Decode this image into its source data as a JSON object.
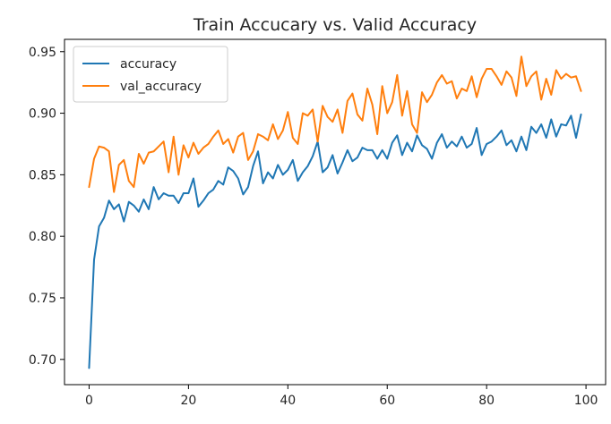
{
  "chart_data": {
    "type": "line",
    "title": "Train Accucary vs. Valid Accuracy",
    "xlabel": "",
    "ylabel": "",
    "xlim": [
      -4.95,
      103.95
    ],
    "ylim": [
      0.6795,
      0.96
    ],
    "xticks": [
      0,
      20,
      40,
      60,
      80,
      100
    ],
    "xtick_labels": [
      "0",
      "20",
      "40",
      "60",
      "80",
      "100"
    ],
    "yticks": [
      0.7,
      0.75,
      0.8,
      0.85,
      0.9,
      0.95
    ],
    "ytick_labels": [
      "0.70",
      "0.75",
      "0.80",
      "0.85",
      "0.90",
      "0.95"
    ],
    "grid": false,
    "legend_position": "upper left",
    "x": [
      0,
      1,
      2,
      3,
      4,
      5,
      6,
      7,
      8,
      9,
      10,
      11,
      12,
      13,
      14,
      15,
      16,
      17,
      18,
      19,
      20,
      21,
      22,
      23,
      24,
      25,
      26,
      27,
      28,
      29,
      30,
      31,
      32,
      33,
      34,
      35,
      36,
      37,
      38,
      39,
      40,
      41,
      42,
      43,
      44,
      45,
      46,
      47,
      48,
      49,
      50,
      51,
      52,
      53,
      54,
      55,
      56,
      57,
      58,
      59,
      60,
      61,
      62,
      63,
      64,
      65,
      66,
      67,
      68,
      69,
      70,
      71,
      72,
      73,
      74,
      75,
      76,
      77,
      78,
      79,
      80,
      81,
      82,
      83,
      84,
      85,
      86,
      87,
      88,
      89,
      90,
      91,
      92,
      93,
      94,
      95,
      96,
      97,
      98,
      99
    ],
    "series": [
      {
        "name": "accuracy",
        "color": "#1f77b4",
        "values": [
          0.693,
          0.781,
          0.808,
          0.815,
          0.829,
          0.822,
          0.826,
          0.812,
          0.828,
          0.825,
          0.82,
          0.83,
          0.822,
          0.84,
          0.83,
          0.835,
          0.833,
          0.833,
          0.827,
          0.835,
          0.835,
          0.847,
          0.824,
          0.829,
          0.835,
          0.838,
          0.845,
          0.842,
          0.856,
          0.853,
          0.847,
          0.834,
          0.84,
          0.857,
          0.869,
          0.843,
          0.852,
          0.847,
          0.858,
          0.85,
          0.854,
          0.862,
          0.845,
          0.852,
          0.857,
          0.865,
          0.877,
          0.852,
          0.856,
          0.866,
          0.851,
          0.86,
          0.87,
          0.861,
          0.864,
          0.872,
          0.87,
          0.87,
          0.863,
          0.87,
          0.863,
          0.876,
          0.882,
          0.866,
          0.876,
          0.869,
          0.882,
          0.874,
          0.871,
          0.863,
          0.876,
          0.883,
          0.872,
          0.877,
          0.873,
          0.881,
          0.872,
          0.875,
          0.888,
          0.866,
          0.875,
          0.877,
          0.881,
          0.886,
          0.874,
          0.878,
          0.869,
          0.881,
          0.87,
          0.889,
          0.884,
          0.891,
          0.88,
          0.895,
          0.881,
          0.891,
          0.89,
          0.898,
          0.88,
          0.899
        ],
        "note": ""
      },
      {
        "name": "val_accuracy",
        "color": "#ff7f0e",
        "values": [
          0.84,
          0.863,
          0.873,
          0.872,
          0.869,
          0.836,
          0.858,
          0.862,
          0.845,
          0.84,
          0.867,
          0.859,
          0.868,
          0.869,
          0.873,
          0.877,
          0.852,
          0.881,
          0.85,
          0.874,
          0.864,
          0.876,
          0.867,
          0.872,
          0.875,
          0.881,
          0.886,
          0.875,
          0.879,
          0.868,
          0.881,
          0.884,
          0.862,
          0.869,
          0.883,
          0.881,
          0.878,
          0.891,
          0.879,
          0.886,
          0.901,
          0.88,
          0.875,
          0.9,
          0.898,
          0.903,
          0.877,
          0.906,
          0.897,
          0.893,
          0.903,
          0.884,
          0.91,
          0.916,
          0.899,
          0.894,
          0.92,
          0.907,
          0.883,
          0.922,
          0.9,
          0.909,
          0.931,
          0.898,
          0.918,
          0.891,
          0.884,
          0.917,
          0.909,
          0.915,
          0.925,
          0.931,
          0.924,
          0.926,
          0.912,
          0.92,
          0.918,
          0.93,
          0.913,
          0.928,
          0.936,
          0.936,
          0.93,
          0.923,
          0.934,
          0.929,
          0.914,
          0.946,
          0.922,
          0.93,
          0.934,
          0.911,
          0.928,
          0.915,
          0.935,
          0.928,
          0.932,
          0.929,
          0.93,
          0.918
        ]
      }
    ]
  }
}
